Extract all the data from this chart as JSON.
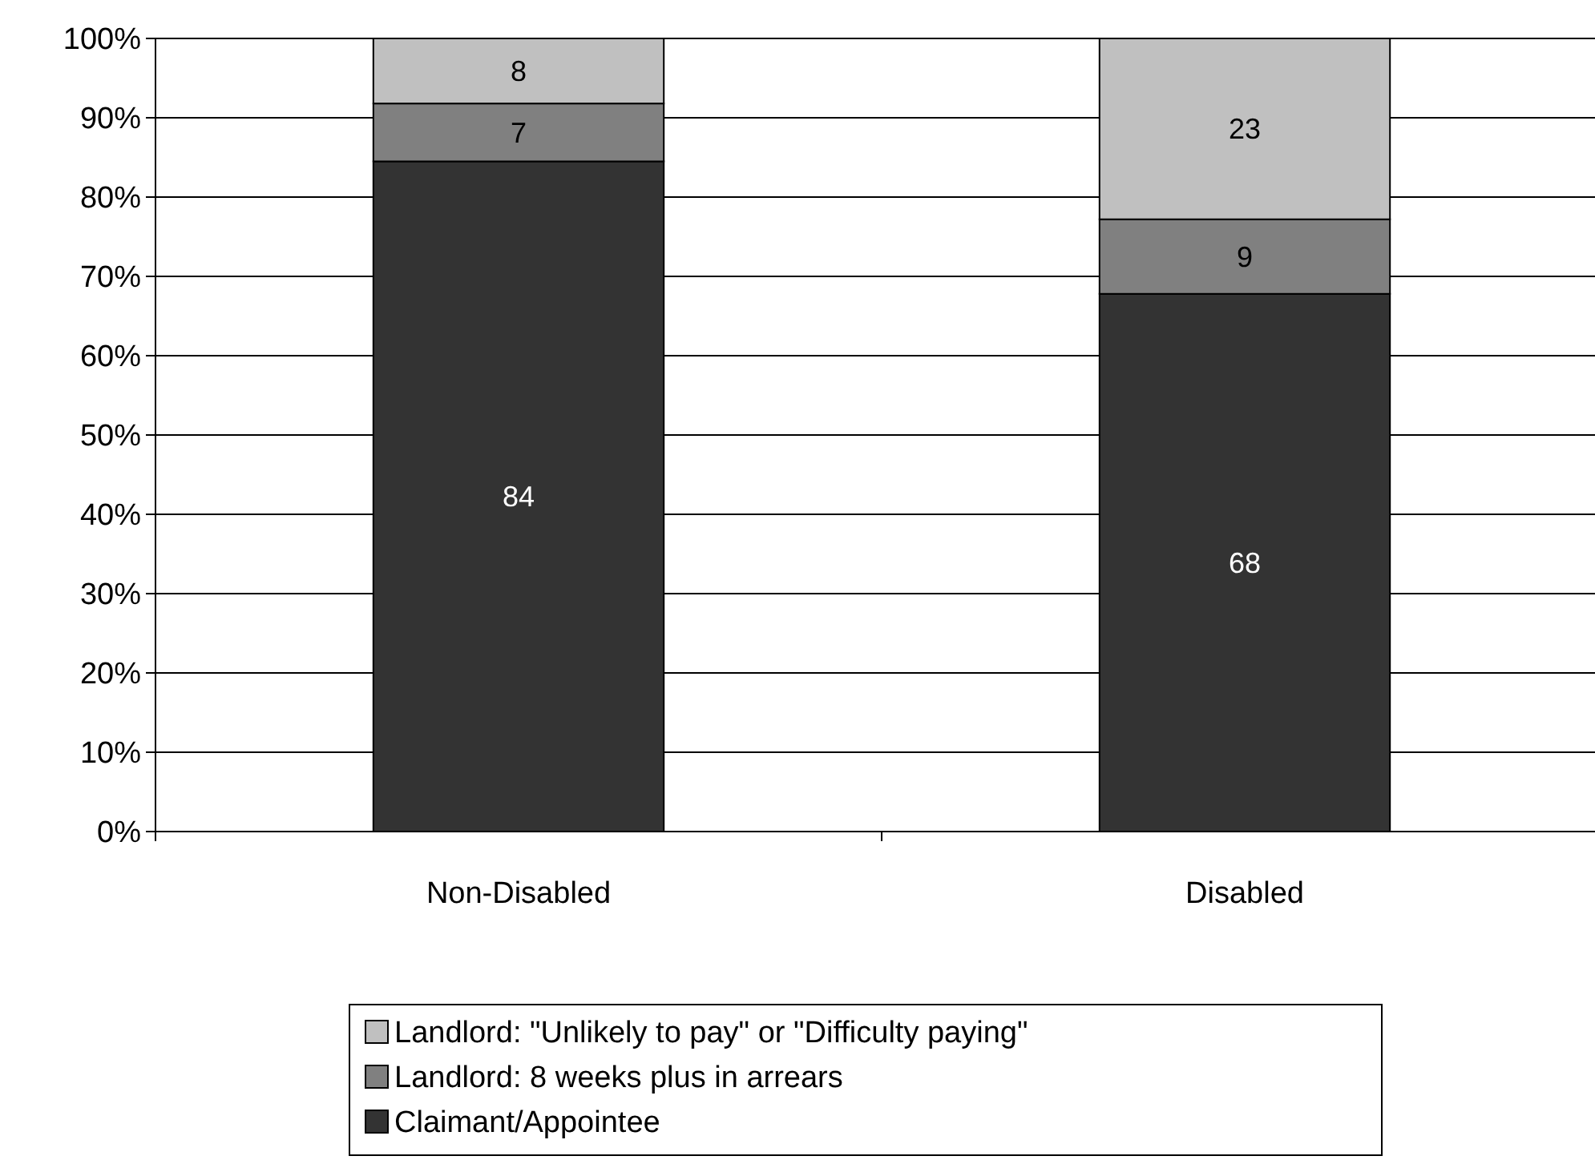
{
  "chart_data": {
    "type": "bar",
    "stacked": true,
    "categories": [
      "Non-Disabled",
      "Disabled"
    ],
    "series": [
      {
        "name": "Claimant/Appointee",
        "color": "#333333",
        "values": [
          84.5,
          67.8
        ],
        "value_labels": [
          "84",
          "68"
        ]
      },
      {
        "name": "Landlord: 8 weeks plus in arrears",
        "color": "#808080",
        "values": [
          7.3,
          9.4
        ],
        "value_labels": [
          "7",
          "9"
        ]
      },
      {
        "name": "Landlord: \"Unlikely to pay\" or \"Difficulty paying\"",
        "color": "#c0c0c0",
        "values": [
          8.2,
          22.8
        ],
        "value_labels": [
          "8",
          "23"
        ]
      }
    ],
    "ylim": [
      0,
      100
    ],
    "yticks": [
      {
        "value": 0,
        "label": "0%"
      },
      {
        "value": 10,
        "label": "10%"
      },
      {
        "value": 20,
        "label": "20%"
      },
      {
        "value": 30,
        "label": "30%"
      },
      {
        "value": 40,
        "label": "40%"
      },
      {
        "value": 50,
        "label": "50%"
      },
      {
        "value": 60,
        "label": "60%"
      },
      {
        "value": 70,
        "label": "70%"
      },
      {
        "value": 80,
        "label": "80%"
      },
      {
        "value": 90,
        "label": "90%"
      },
      {
        "value": 100,
        "label": "100%"
      }
    ],
    "grid": "y",
    "legend": "bottom"
  }
}
